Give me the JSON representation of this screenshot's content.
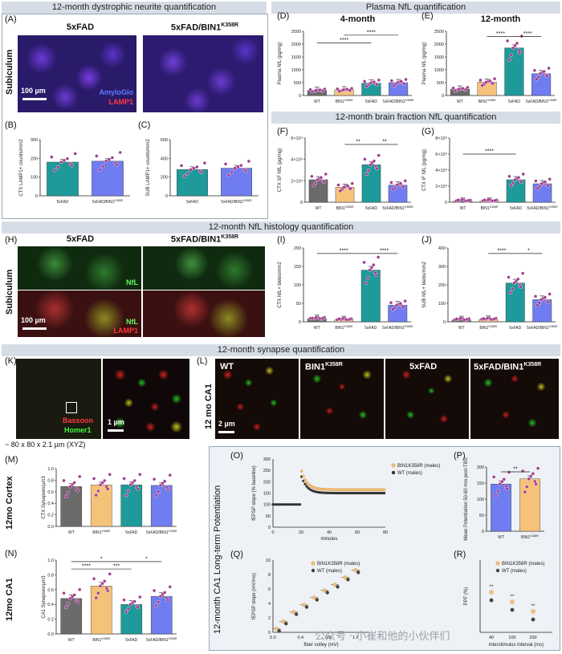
{
  "sections": {
    "dystrophic": "12-month dystrophic neurite quantification",
    "plasma": "Plasma NfL quantification",
    "brain_fraction": "12-month brain fraction NfL quantification",
    "histology": "12-month NfL histology quantification",
    "synapse": "12-month synapse quantification",
    "ltp": "12-month CA1 Long-term Potentiation"
  },
  "letters": {
    "A": "(A)",
    "B": "(B)",
    "C": "(C)",
    "D": "(D)",
    "E": "(E)",
    "F": "(F)",
    "G": "(G)",
    "H": "(H)",
    "I": "(I)",
    "J": "(J)",
    "K": "(K)",
    "L": "(L)",
    "M": "(M)",
    "N": "(N)",
    "O": "(O)",
    "P": "(P)",
    "Q": "(Q)",
    "R": "(R)"
  },
  "panel_a": {
    "left_title": "5xFAD",
    "right_title": "5xFAD/BIN1",
    "right_title_sup": "K358R",
    "side": "Subiculum",
    "scale": "100 µm",
    "stain1": "AmyloGlo",
    "stain2": "LAMP1",
    "color_stain1": "#3d5bff",
    "color_stain2": "#ff2b2b"
  },
  "panel_h": {
    "left_title": "5xFAD",
    "right_title": "5xFAD/BIN1",
    "right_title_sup": "K358R",
    "side": "Subiculum",
    "scale": "100 µm",
    "stain1": "NfL",
    "stain2": "LAMP1"
  },
  "panel_k": {
    "stain1": "Bassoon",
    "stain2": "Homer1",
    "scale": "1 µm",
    "dims": "~ 80 x 80 x 2.1 µm (XYZ)"
  },
  "panel_l": {
    "side": "12 mo CA1",
    "scale": "2 µm",
    "titles": [
      "WT",
      "BIN1",
      "5xFAD",
      "5xFAD/BIN1"
    ],
    "sups": [
      "",
      "K358R",
      "",
      "K358R"
    ]
  },
  "side_labels": {
    "m": "12mo Cortex",
    "n": "12mo CA1"
  },
  "watermark": "公众号 · 小崔和他的小伙伴们",
  "colors": {
    "wt": "#6b6b6b",
    "bin1": "#f5c27a",
    "fad": "#1f9a9a",
    "fadbin": "#6f7df0",
    "dots": "#a03b8f",
    "bracket": "#222222"
  },
  "chart_data": [
    {
      "id": "B",
      "type": "bar",
      "ylabel": "CTX LAMP1+ counts/mm2",
      "ylim": [
        0,
        300
      ],
      "ticks": [
        "0",
        "100",
        "200",
        "300"
      ],
      "categories": [
        "5xFAD",
        "5xFAD/BIN1K358R"
      ],
      "values": [
        180,
        185
      ]
    },
    {
      "id": "C",
      "type": "bar",
      "ylabel": "SUB LAMP1+ counts/mm2",
      "ylim": [
        0,
        600
      ],
      "ticks": [
        "0",
        "200",
        "400",
        "600"
      ],
      "categories": [
        "5xFAD",
        "5xFAD/BIN1K358R"
      ],
      "values": [
        280,
        295
      ]
    },
    {
      "id": "D",
      "type": "bar",
      "title": "4-month",
      "ylabel": "Plasma NfL (pg/mg)",
      "ylim": [
        0,
        2500
      ],
      "ticks": [
        "0",
        "500",
        "1000",
        "1500",
        "2000",
        "2500"
      ],
      "categories": [
        "WT",
        "BIN1K358R",
        "5xFAD",
        "5xFAD/BIN1K358R"
      ],
      "values": [
        200,
        220,
        480,
        500
      ],
      "significance": [
        "****",
        "****"
      ]
    },
    {
      "id": "E",
      "type": "bar",
      "title": "12-month",
      "ylabel": "Plasma NfL (pg/mg)",
      "ylim": [
        0,
        2500
      ],
      "ticks": [
        "0",
        "500",
        "1000",
        "1500",
        "2000",
        "2500"
      ],
      "categories": [
        "WT",
        "BIN1K358R",
        "5xFAD",
        "5xFAD/BIN1K358R"
      ],
      "values": [
        250,
        520,
        1850,
        850
      ],
      "significance": [
        "****",
        "****"
      ]
    },
    {
      "id": "F",
      "type": "bar",
      "ylabel": "CTX SF NfL (pg/mg)",
      "ylim": [
        0,
        60000
      ],
      "ticks": [
        "0",
        "2×10⁴",
        "4×10⁴",
        "6×10⁴"
      ],
      "categories": [
        "WT",
        "BIN1K358R",
        "5xFAD",
        "5xFAD/BIN1K358R"
      ],
      "values": [
        21000,
        14000,
        35000,
        16000
      ],
      "significance": [
        "**",
        "**"
      ]
    },
    {
      "id": "G",
      "type": "bar",
      "ylabel": "CTX IF NfL (pg/mg)",
      "ylim": [
        0,
        80000
      ],
      "ticks": [
        "0",
        "2×10⁴",
        "4×10⁴",
        "6×10⁴",
        "8×10⁴"
      ],
      "categories": [
        "WT",
        "BIN1K358R",
        "5xFAD",
        "5xFAD/BIN1K358R"
      ],
      "values": [
        1500,
        1500,
        28000,
        23000
      ],
      "significance": [
        "****"
      ]
    },
    {
      "id": "I",
      "type": "bar",
      "ylabel": "CTX NfL+ blebs/mm2",
      "ylim": [
        0,
        200
      ],
      "ticks": [
        "0",
        "50",
        "100",
        "150",
        "200"
      ],
      "categories": [
        "WT",
        "BIN1K358R",
        "5xFAD",
        "5xFAD/BIN1K358R"
      ],
      "values": [
        8,
        5,
        140,
        45
      ],
      "significance": [
        "****",
        "****"
      ]
    },
    {
      "id": "J",
      "type": "bar",
      "ylabel": "SUB NfL+ blebs/mm2",
      "ylim": [
        0,
        400
      ],
      "ticks": [
        "0",
        "100",
        "200",
        "300",
        "400"
      ],
      "categories": [
        "WT",
        "BIN1K358R",
        "5xFAD",
        "5xFAD/BIN1K358R"
      ],
      "values": [
        10,
        12,
        210,
        120
      ],
      "significance": [
        "****",
        "*"
      ]
    },
    {
      "id": "M",
      "type": "bar",
      "ylabel": "CTX Synapses/µm3",
      "ylim": [
        0,
        1.0
      ],
      "ticks": [
        "0.0",
        "0.2",
        "0.4",
        "0.6",
        "0.8",
        "1.0"
      ],
      "categories": [
        "WT",
        "BIN1K358R",
        "5xFAD",
        "5xFAD/BIN1K358R"
      ],
      "values": [
        0.69,
        0.72,
        0.72,
        0.71
      ]
    },
    {
      "id": "N",
      "type": "bar",
      "ylabel": "CA1 Synapses/µm3",
      "ylim": [
        0,
        1.0
      ],
      "ticks": [
        "0.0",
        "0.2",
        "0.4",
        "0.6",
        "0.8",
        "1.0"
      ],
      "categories": [
        "WT",
        "BIN1K358R",
        "5xFAD",
        "5xFAD/BIN1K358R"
      ],
      "values": [
        0.48,
        0.65,
        0.4,
        0.51
      ],
      "significance": [
        "****",
        "***",
        "*",
        "*"
      ]
    },
    {
      "id": "O",
      "type": "scatter",
      "ylabel": "fEPSP slope (% baseline)",
      "xlabel": "minutes",
      "xlim": [
        0,
        80
      ],
      "ylim": [
        0,
        300
      ],
      "xticks": [
        "0",
        "20",
        "40",
        "60",
        "80"
      ],
      "yticks": [
        "0",
        "50",
        "100",
        "150",
        "200",
        "250",
        "300"
      ],
      "legend": [
        "BIN1K358R (males)",
        "WT (males)"
      ]
    },
    {
      "id": "P",
      "type": "bar",
      "ylabel": "Mean Potentiation 50-60 min post-TBS",
      "ylim": [
        0,
        200
      ],
      "ticks": [
        "0",
        "50",
        "100",
        "150",
        "200"
      ],
      "categories": [
        "WT",
        "BIN1K358R"
      ],
      "values": [
        147,
        163
      ],
      "significance": [
        "**"
      ]
    },
    {
      "id": "Q",
      "type": "scatter",
      "ylabel": "fEPSP slope (mV/ms)",
      "xlabel": "fiber volley (mV)",
      "xlim": [
        0,
        1.4
      ],
      "ylim": [
        0,
        10
      ],
      "xticks": [
        "0.0",
        "0.4",
        "0.8",
        "1.2"
      ],
      "yticks": [
        "0",
        "2",
        "4",
        "6",
        "8",
        "10"
      ],
      "legend": [
        "BIN1K358R (males)",
        "WT (males)"
      ]
    },
    {
      "id": "R",
      "type": "scatter",
      "ylabel": "PPF (%)",
      "xlabel": "interstimulus interval (ms)",
      "xticks": [
        "40",
        "100",
        "200"
      ],
      "legend": [
        "BIN1K358R (males)",
        "WT (males)"
      ],
      "significance": [
        "**",
        "**",
        "**"
      ]
    }
  ]
}
